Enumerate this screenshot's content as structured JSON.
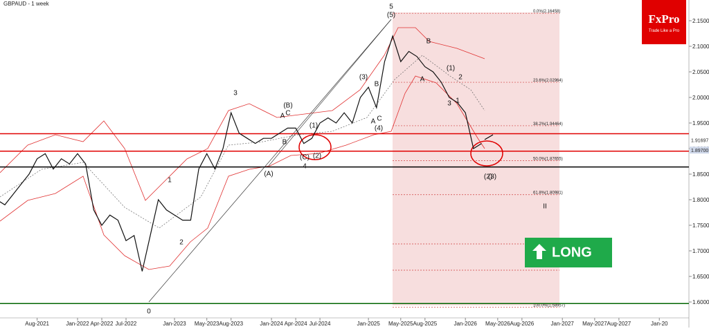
{
  "chart_data": {
    "type": "line",
    "title": "GBPAUD - 1 week",
    "logo": "FxPro",
    "logo_tagline": "Trade Like a Pro",
    "signal": "LONG",
    "ylim": [
      1.5757,
      2.1905
    ],
    "yticks": [
      {
        "value": 2.15,
        "label": "2.15000"
      },
      {
        "value": 2.1,
        "label": "2.10000"
      },
      {
        "value": 2.05,
        "label": "2.05000"
      },
      {
        "value": 2.0,
        "label": "2.00000"
      },
      {
        "value": 1.95,
        "label": "1.95000"
      },
      {
        "value": 1.9,
        "label": "1.90000"
      },
      {
        "value": 1.85,
        "label": "1.85000"
      },
      {
        "value": 1.8,
        "label": "1.80000"
      },
      {
        "value": 1.75,
        "label": "1.75000"
      },
      {
        "value": 1.7,
        "label": "1.70000"
      },
      {
        "value": 1.65,
        "label": "1.65000"
      },
      {
        "value": 1.6,
        "label": "1.60000"
      }
    ],
    "xticks": [
      "Aug-2021",
      "Jan-2022",
      "Apr-2022",
      "Jul-2022",
      "Jan-2023",
      "May-2023",
      "Aug-2023",
      "Jan-2024",
      "Apr-2024",
      "Jul-2024",
      "Jan-2025",
      "May-2025",
      "Aug-2025",
      "Jan-2026",
      "May-2026",
      "Aug-2026",
      "Jan-2027",
      "May-2027",
      "Aug-2027",
      {
        "value": "Jan-2028",
        "label": "Jan-20"
      }
    ],
    "series": [
      {
        "name": "GBPAUD",
        "color": "#111111",
        "x": [
          "Mar-2021",
          "Apr-2021",
          "May-2021",
          "Jun-2021",
          "Jul-2021",
          "Aug-2021",
          "Sep-2021",
          "Oct-2021",
          "Nov-2021",
          "Dec-2021",
          "Jan-2022",
          "Feb-2022",
          "Mar-2022",
          "Apr-2022",
          "May-2022",
          "Jun-2022",
          "Jul-2022",
          "Aug-2022",
          "Sep-2022",
          "Oct-2022",
          "Nov-2022",
          "Dec-2022",
          "Jan-2023",
          "Feb-2023",
          "Mar-2023",
          "Apr-2023",
          "May-2023",
          "Jun-2023",
          "Jul-2023",
          "Aug-2023",
          "Sep-2023",
          "Oct-2023",
          "Nov-2023",
          "Dec-2023",
          "Jan-2024",
          "Feb-2024",
          "Mar-2024",
          "Apr-2024",
          "May-2024",
          "Jun-2024",
          "Jul-2024",
          "Aug-2024",
          "Sep-2024",
          "Oct-2024",
          "Nov-2024",
          "Dec-2024",
          "Jan-2025",
          "Feb-2025",
          "Mar-2025",
          "Apr-2025",
          "May-2025",
          "Jun-2025",
          "Jul-2025",
          "Aug-2025",
          "Sep-2025",
          "Oct-2025",
          "Nov-2025",
          "Dec-2025",
          "Jan-2026",
          "Feb-2026",
          "Mar-2026"
        ],
        "values": [
          1.8,
          1.79,
          1.81,
          1.83,
          1.85,
          1.88,
          1.89,
          1.86,
          1.88,
          1.87,
          1.89,
          1.87,
          1.78,
          1.75,
          1.77,
          1.76,
          1.72,
          1.73,
          1.66,
          1.73,
          1.8,
          1.78,
          1.77,
          1.76,
          1.76,
          1.86,
          1.89,
          1.86,
          1.9,
          1.97,
          1.93,
          1.92,
          1.91,
          1.92,
          1.92,
          1.93,
          1.94,
          1.94,
          1.91,
          1.92,
          1.95,
          1.96,
          1.95,
          1.97,
          1.95,
          2.0,
          2.02,
          1.98,
          2.07,
          2.12,
          2.07,
          2.09,
          2.08,
          2.06,
          2.05,
          2.03,
          2.0,
          1.99,
          1.97,
          1.9,
          1.91
        ]
      }
    ],
    "levels": [
      {
        "value": 1.929,
        "color": "#e00000"
      },
      {
        "value": 1.895,
        "color": "#e00000"
      },
      {
        "value": 1.864,
        "color": "#000000"
      },
      {
        "value": 1.597,
        "color": "#006400"
      }
    ],
    "price_markers": [
      {
        "value": 1.91697,
        "label": "1.91697"
      },
      {
        "value": 1.897,
        "label": "1.89700"
      }
    ],
    "fibonacci": [
      {
        "value": 2.16458,
        "label": "0.0%(2.16458)"
      },
      {
        "value": 2.02964,
        "label": "23.6%(2.02964)"
      },
      {
        "value": 1.94464,
        "label": "38.2%(1.94464)"
      },
      {
        "value": 1.87655,
        "label": "50.0%(1.87655)"
      },
      {
        "value": 1.80981,
        "label": "61.8%(1.80981)"
      },
      {
        "value": 1.58957,
        "label": "100.0%(1.58957)"
      }
    ],
    "annotations": [
      "5",
      "(5)",
      "(3)",
      "B",
      "A",
      "C",
      "(4)",
      "(B)",
      "A",
      "C",
      "B",
      "(1)",
      "(2)",
      "(C)",
      "4",
      "(A)",
      "3",
      "1",
      "2",
      "0",
      "B",
      "A",
      "(2)",
      "2",
      "(1)",
      "1",
      "3",
      "(3)",
      "II"
    ]
  }
}
